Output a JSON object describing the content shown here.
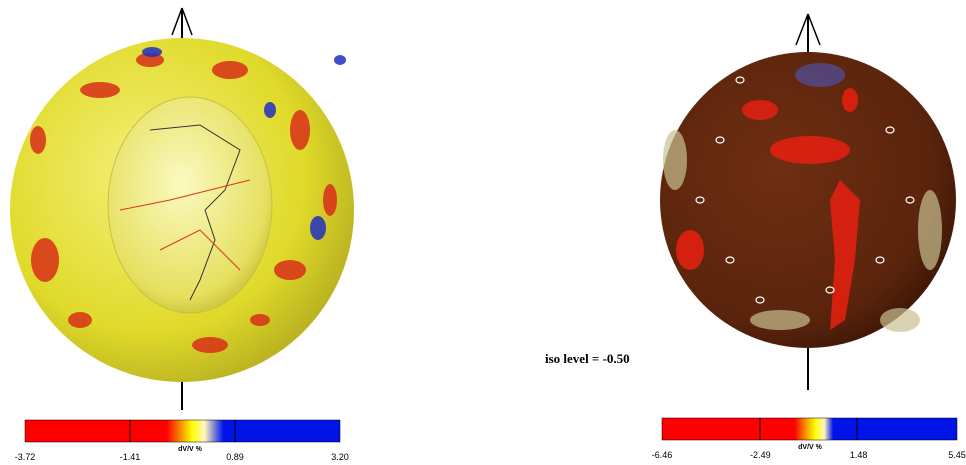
{
  "panels": [
    {
      "colorbar": {
        "ticks": [
          "-3.72",
          "-1.41",
          "0.89",
          "3.20"
        ],
        "label": "dV/V %"
      }
    },
    {
      "colorbar": {
        "ticks": [
          "-6.46",
          "-2.49",
          "1.48",
          "5.45"
        ],
        "label": "dV/V %"
      },
      "annotation": "iso level = -0.50"
    }
  ]
}
